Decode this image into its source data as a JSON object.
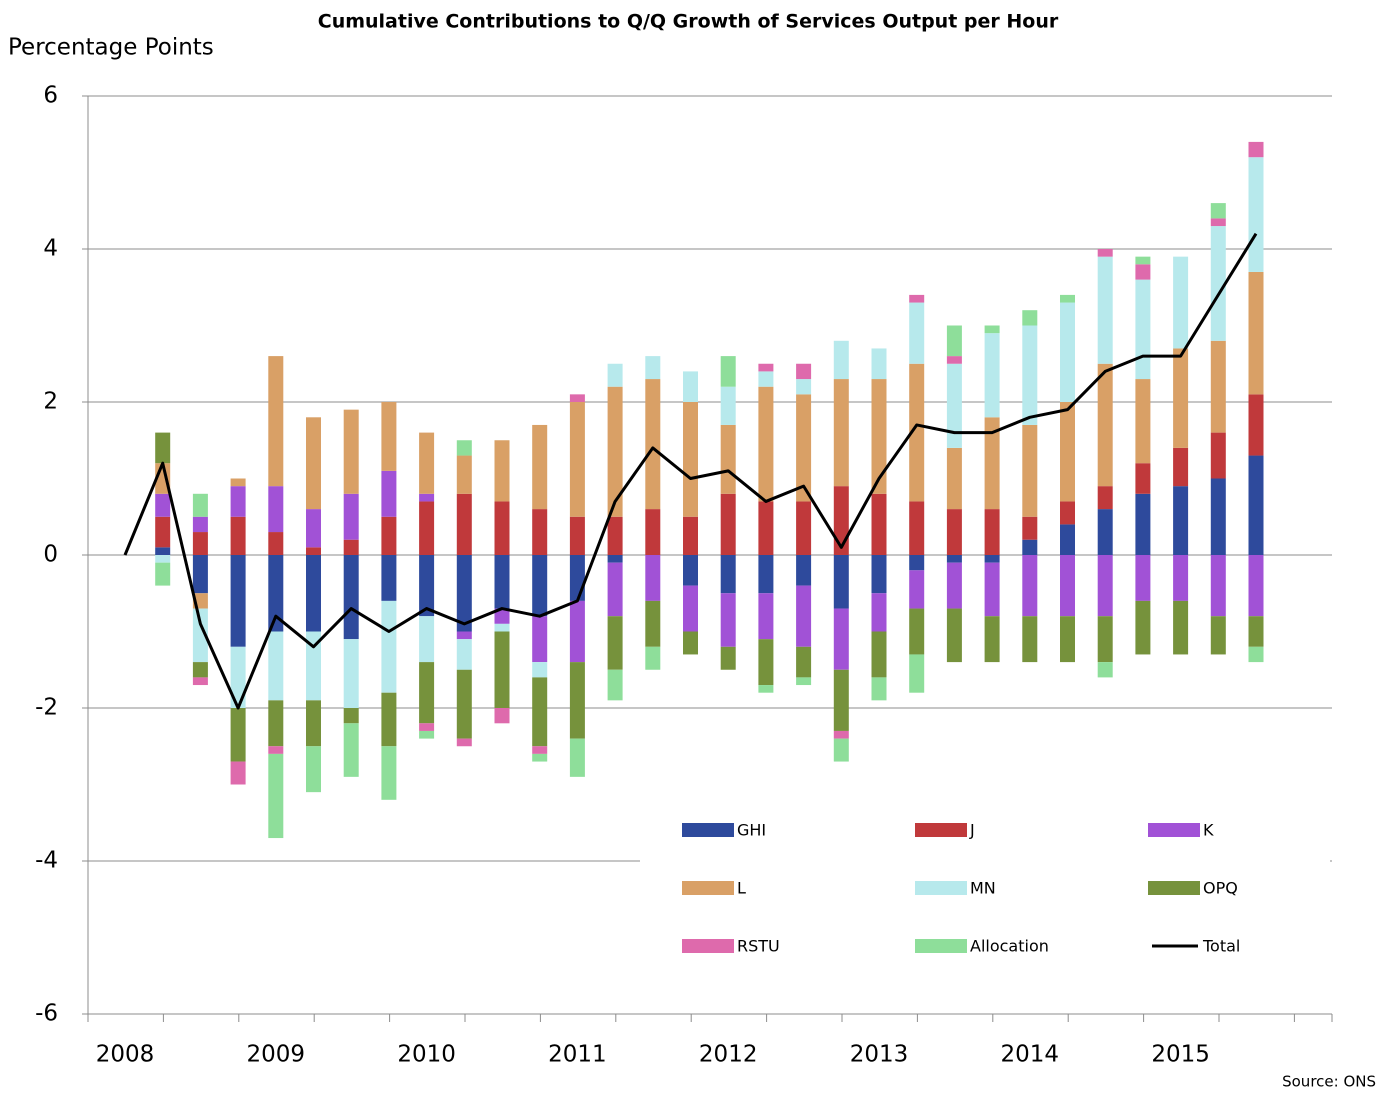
{
  "chart_data": {
    "type": "bar",
    "stacked": true,
    "title": "Cumulative Contributions to Q/Q Growth of Services Output per Hour",
    "y_label": "Percentage Points",
    "source": "Source: ONS",
    "categories": [
      "2008",
      null,
      null,
      null,
      "2009",
      null,
      null,
      null,
      "2010",
      null,
      null,
      null,
      "2011",
      null,
      null,
      null,
      "2012",
      null,
      null,
      null,
      "2013",
      null,
      null,
      null,
      "2014",
      null,
      null,
      null,
      "2015",
      null,
      null
    ],
    "ylim": [
      -6,
      6
    ],
    "yticks": [
      -6,
      -4,
      -2,
      0,
      2,
      4,
      6
    ],
    "grid": true,
    "series": [
      {
        "name": "GHI",
        "color": "#2e4a9c",
        "values": [
          0,
          0.1,
          -0.5,
          -1.2,
          -1.0,
          -1.0,
          -1.1,
          -0.6,
          -0.8,
          -1.0,
          -0.7,
          -0.8,
          -0.6,
          -0.1,
          0,
          -0.4,
          -0.5,
          -0.5,
          -0.4,
          -0.7,
          -0.5,
          -0.2,
          -0.1,
          -0.1,
          0.2,
          0.4,
          0.6,
          0.8,
          0.9,
          1.0,
          1.3
        ]
      },
      {
        "name": "J",
        "color": "#c0393b",
        "values": [
          0,
          0.4,
          0.3,
          0.5,
          0.3,
          0.1,
          0.2,
          0.5,
          0.7,
          0.8,
          0.7,
          0.6,
          0.5,
          0.5,
          0.6,
          0.5,
          0.8,
          0.7,
          0.7,
          0.9,
          0.8,
          0.7,
          0.6,
          0.6,
          0.3,
          0.3,
          0.3,
          0.4,
          0.5,
          0.6,
          0.8
        ]
      },
      {
        "name": "K",
        "color": "#a152d6",
        "values": [
          0,
          0.3,
          0.2,
          0.4,
          0.6,
          0.5,
          0.6,
          0.6,
          0.1,
          -0.1,
          -0.2,
          -0.6,
          -0.8,
          -0.7,
          -0.6,
          -0.6,
          -0.7,
          -0.6,
          -0.8,
          -0.8,
          -0.5,
          -0.5,
          -0.6,
          -0.7,
          -0.8,
          -0.8,
          -0.8,
          -0.6,
          -0.6,
          -0.8,
          -0.8
        ]
      },
      {
        "name": "L",
        "color": "#d9a066",
        "values": [
          0,
          0.4,
          -0.2,
          0.1,
          1.7,
          1.2,
          1.1,
          0.9,
          0.8,
          0.5,
          0.8,
          1.1,
          1.5,
          1.7,
          1.7,
          1.5,
          0.9,
          1.5,
          1.4,
          1.4,
          1.5,
          1.8,
          0.8,
          1.2,
          1.2,
          1.3,
          1.6,
          1.1,
          1.3,
          1.2,
          1.6
        ]
      },
      {
        "name": "MN",
        "color": "#b7e9ec",
        "values": [
          0,
          -0.1,
          -0.7,
          -0.8,
          -0.9,
          -0.9,
          -0.9,
          -1.2,
          -0.6,
          -0.4,
          -0.1,
          -0.2,
          0,
          0.3,
          0.3,
          0.4,
          0.5,
          0.2,
          0.2,
          0.5,
          0.4,
          0.8,
          1.1,
          1.1,
          1.3,
          1.3,
          1.4,
          1.3,
          1.2,
          1.5,
          1.5
        ]
      },
      {
        "name": "OPQ",
        "color": "#76923c",
        "values": [
          0,
          0.4,
          -0.2,
          -0.7,
          -0.6,
          -0.6,
          -0.2,
          -0.7,
          -0.8,
          -0.9,
          -1.0,
          -0.9,
          -1.0,
          -0.7,
          -0.6,
          -0.3,
          -0.3,
          -0.6,
          -0.4,
          -0.8,
          -0.6,
          -0.6,
          -0.7,
          -0.6,
          -0.6,
          -0.6,
          -0.6,
          -0.7,
          -0.7,
          -0.5,
          -0.4
        ]
      },
      {
        "name": "RSTU",
        "color": "#de6aac",
        "values": [
          0,
          0,
          -0.1,
          -0.3,
          -0.1,
          0,
          0,
          0,
          -0.1,
          -0.1,
          -0.2,
          -0.1,
          0.1,
          0,
          0,
          0,
          0,
          0.1,
          0.2,
          -0.1,
          0,
          0.1,
          0.1,
          0,
          0,
          0,
          0.1,
          0.2,
          0,
          0.1,
          0.2
        ]
      },
      {
        "name": "Allocation",
        "color": "#8ede9a",
        "values": [
          0,
          -0.3,
          0.3,
          0,
          -1.1,
          -0.6,
          -0.7,
          -0.7,
          -0.1,
          0.2,
          0,
          -0.1,
          -0.5,
          -0.4,
          -0.3,
          0,
          0.4,
          -0.1,
          -0.1,
          -0.3,
          -0.3,
          -0.5,
          0.4,
          0.1,
          0.2,
          0.1,
          -0.2,
          0.1,
          0,
          0.2,
          -0.2
        ]
      },
      {
        "name": "Total",
        "type": "line",
        "color": "#000000",
        "values": [
          0,
          1.2,
          -0.9,
          -2.0,
          -0.8,
          -1.2,
          -0.7,
          -1.0,
          -0.7,
          -0.9,
          -0.7,
          -0.8,
          -0.6,
          0.7,
          1.4,
          1.0,
          1.1,
          0.7,
          0.9,
          0.1,
          1.0,
          1.7,
          1.6,
          1.6,
          1.8,
          1.9,
          2.4,
          2.6,
          2.6,
          3.4,
          4.2
        ]
      }
    ]
  }
}
